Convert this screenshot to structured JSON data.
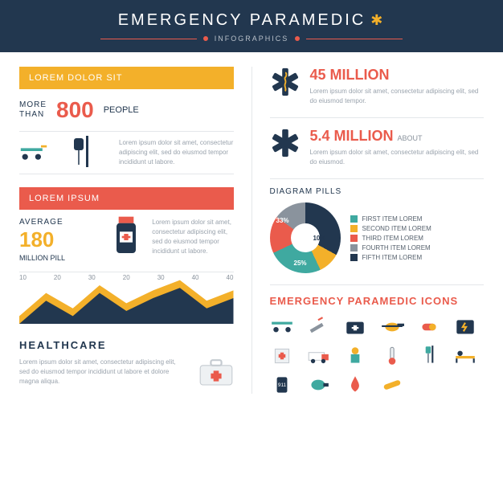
{
  "colors": {
    "navy": "#22374f",
    "red": "#ea5b4c",
    "yellow": "#f3b02a",
    "teal": "#3fa9a0",
    "grey": "#8a939d",
    "divider": "#e4e7ea",
    "bg": "#ffffff"
  },
  "header": {
    "title": "EMERGENCY PARAMEDIC",
    "subtitle": "INFOGRAPHICS"
  },
  "left": {
    "bar1": "LOREM DOLOR SIT",
    "stat1": {
      "label": "MORE\nTHAN",
      "value": "800",
      "unit": "PEOPLE"
    },
    "bar2": "LOREM IPSUM",
    "stat2": {
      "label": "AVERAGE",
      "value": "180",
      "unit": "MILLION PILL"
    },
    "lorem": "Lorem ipsum dolor sit amet, consectetur adipiscing elit, sed do eiusmod tempor incididunt ut labore.",
    "triangle_chart": {
      "type": "area-triangles",
      "ticks": [
        "10",
        "20",
        "30",
        "20",
        "30",
        "40",
        "40"
      ],
      "points": [
        0,
        18,
        6,
        24,
        10,
        20,
        28,
        12,
        20
      ],
      "back_color": "#f3b02a",
      "front_color": "#22374f",
      "tick_fontsize": 8
    },
    "healthcare": {
      "title": "HEALTHCARE",
      "body": "Lorem ipsum dolor sit amet, consectetur adipiscing elit, sed do eiusmod tempor incididunt ut labore et dolore magna aliqua."
    }
  },
  "right": {
    "stat1": {
      "value": "45 MILLION",
      "body": "Lorem ipsum dolor sit amet, consectetur adipiscing elit, sed do eiusmod tempor."
    },
    "stat2": {
      "value": "5.4 MILLION",
      "suffix": "ABOUT",
      "body": "Lorem ipsum dolor sit amet, consectetur adipiscing elit, sed do eiusmod."
    },
    "pie": {
      "title": "DIAGRAM PILLS",
      "type": "donut",
      "slices": [
        {
          "label": "33%",
          "value": 33,
          "color": "#22374f"
        },
        {
          "label": "10%",
          "value": 10,
          "color": "#f3b02a"
        },
        {
          "label": "25%",
          "value": 25,
          "color": "#3fa9a0"
        },
        {
          "label": "",
          "value": 17,
          "color": "#ea5b4c"
        },
        {
          "label": "",
          "value": 15,
          "color": "#8a939d"
        }
      ],
      "legend": [
        "FIRST ITEM LOREM",
        "SECOND ITEM LOREM",
        "THIRD ITEM LOREM",
        "FOURTH ITEM LOREM",
        "FIFTH ITEM LOREM"
      ],
      "legend_colors": [
        "#3fa9a0",
        "#f3b02a",
        "#ea5b4c",
        "#8a939d",
        "#22374f"
      ]
    },
    "icons_title": "EMERGENCY PARAMEDIC ICONS",
    "icon_names": [
      "stretcher",
      "syringe",
      "firstaid-bag",
      "helicopter",
      "pill",
      "defibrillator",
      "hospital",
      "ambulance",
      "doctor",
      "thermometer",
      "iv-drip",
      "patient-bed",
      "phone-911",
      "ambu-bag",
      "blood-drop",
      "bandage"
    ]
  }
}
